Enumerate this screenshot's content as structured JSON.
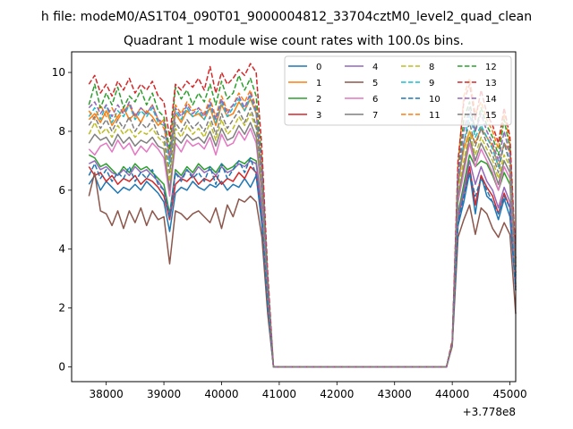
{
  "chart_data": {
    "type": "line",
    "suptitle": "h file: modeM0/AS1T04_090T01_9000004812_33704cztM0_level2_quad_clean",
    "title": "Quadrant 1 module wise count rates with 100.0s bins.",
    "xlabel": "",
    "ylabel": "",
    "x_offset_label": "+3.778e8",
    "xlim": [
      37400,
      45100
    ],
    "ylim": [
      -0.5,
      10.7
    ],
    "xticks": [
      38000,
      39000,
      40000,
      41000,
      42000,
      43000,
      44000,
      45000
    ],
    "yticks": [
      0,
      2,
      4,
      6,
      8,
      10
    ],
    "x_start": 37700,
    "x_step": 100,
    "legend": {
      "placement": "top-right",
      "ncol": 4
    },
    "grid": false,
    "series": [
      {
        "name": "0",
        "color": "#1f77b4",
        "style": "solid",
        "values": [
          6.2,
          6.5,
          6.0,
          6.3,
          6.1,
          5.9,
          6.1,
          6.0,
          6.2,
          6.0,
          6.3,
          6.1,
          5.9,
          5.6,
          4.6,
          5.9,
          6.1,
          6.0,
          6.3,
          6.1,
          6.0,
          6.2,
          6.1,
          6.3,
          6.0,
          6.2,
          6.1,
          6.4,
          6.1,
          6.5,
          4.8,
          2.0,
          0,
          0,
          0,
          0,
          0,
          0,
          0,
          0,
          0,
          0,
          0,
          0,
          0,
          0,
          0,
          0,
          0,
          0,
          0,
          0,
          0,
          0,
          0,
          0,
          0,
          0,
          0,
          0,
          0,
          0,
          0,
          0.8,
          4.8,
          5.6,
          6.6,
          5.2,
          6.5,
          5.8,
          5.6,
          5.0,
          5.7,
          5.1,
          2.6
        ]
      },
      {
        "name": "1",
        "color": "#ff7f0e",
        "style": "solid",
        "values": [
          8.4,
          8.6,
          8.3,
          8.7,
          8.2,
          8.5,
          8.8,
          8.4,
          8.6,
          8.3,
          8.7,
          8.5,
          8.2,
          8.4,
          7.0,
          8.6,
          8.3,
          8.7,
          8.5,
          8.6,
          8.4,
          8.8,
          8.2,
          8.9,
          8.5,
          8.6,
          9.0,
          8.7,
          9.1,
          8.6,
          6.6,
          2.8,
          0,
          0,
          0,
          0,
          0,
          0,
          0,
          0,
          0,
          0,
          0,
          0,
          0,
          0,
          0,
          0,
          0,
          0,
          0,
          0,
          0,
          0,
          0,
          0,
          0,
          0,
          0,
          0,
          0,
          0,
          0,
          0.8,
          6.2,
          7.4,
          8.0,
          7.6,
          8.1,
          7.8,
          7.5,
          6.8,
          7.6,
          7.3,
          3.4
        ]
      },
      {
        "name": "2",
        "color": "#2ca02c",
        "style": "solid",
        "values": [
          7.2,
          7.1,
          6.8,
          6.9,
          6.7,
          6.5,
          6.8,
          6.6,
          6.9,
          6.7,
          6.8,
          6.6,
          6.4,
          6.2,
          5.2,
          6.7,
          6.5,
          6.8,
          6.6,
          6.9,
          6.7,
          6.8,
          6.6,
          6.9,
          6.7,
          6.8,
          7.0,
          6.9,
          7.1,
          7.0,
          5.4,
          2.2,
          0,
          0,
          0,
          0,
          0,
          0,
          0,
          0,
          0,
          0,
          0,
          0,
          0,
          0,
          0,
          0,
          0,
          0,
          0,
          0,
          0,
          0,
          0,
          0,
          0,
          0,
          0,
          0,
          0,
          0,
          0,
          0.8,
          5.2,
          6.2,
          7.2,
          6.8,
          7.0,
          6.9,
          6.5,
          6.0,
          6.6,
          6.2,
          2.8
        ]
      },
      {
        "name": "3",
        "color": "#d62728",
        "style": "solid",
        "values": [
          6.8,
          6.5,
          6.6,
          6.3,
          6.5,
          6.2,
          6.4,
          6.3,
          6.5,
          6.2,
          6.4,
          6.3,
          6.1,
          5.8,
          5.0,
          6.2,
          6.4,
          6.3,
          6.5,
          6.2,
          6.4,
          6.3,
          6.5,
          6.2,
          6.4,
          6.3,
          6.6,
          6.4,
          6.8,
          6.6,
          5.1,
          2.1,
          0,
          0,
          0,
          0,
          0,
          0,
          0,
          0,
          0,
          0,
          0,
          0,
          0,
          0,
          0,
          0,
          0,
          0,
          0,
          0,
          0,
          0,
          0,
          0,
          0,
          0,
          0,
          0,
          0,
          0,
          0,
          0.8,
          5.0,
          5.9,
          6.8,
          5.5,
          6.5,
          6.1,
          5.8,
          5.2,
          5.9,
          5.4,
          2.7
        ]
      },
      {
        "name": "4",
        "color": "#9467bd",
        "style": "solid",
        "values": [
          6.9,
          7.0,
          6.7,
          6.8,
          6.6,
          6.5,
          6.7,
          6.5,
          6.8,
          6.6,
          6.7,
          6.5,
          6.3,
          6.0,
          5.1,
          6.6,
          6.4,
          6.7,
          6.5,
          6.8,
          6.6,
          6.7,
          6.5,
          6.8,
          6.6,
          6.7,
          6.9,
          6.8,
          7.0,
          6.9,
          5.3,
          2.1,
          0,
          0,
          0,
          0,
          0,
          0,
          0,
          0,
          0,
          0,
          0,
          0,
          0,
          0,
          0,
          0,
          0,
          0,
          0,
          0,
          0,
          0,
          0,
          0,
          0,
          0,
          0,
          0,
          0,
          0,
          0,
          0.8,
          5.1,
          6.0,
          7.0,
          6.2,
          6.8,
          6.3,
          6.0,
          5.4,
          6.1,
          5.6,
          2.7
        ]
      },
      {
        "name": "5",
        "color": "#8c564b",
        "style": "solid",
        "values": [
          5.8,
          6.6,
          5.3,
          5.2,
          4.8,
          5.3,
          4.7,
          5.3,
          4.9,
          5.4,
          4.8,
          5.3,
          5.0,
          5.1,
          3.5,
          5.3,
          5.2,
          5.0,
          5.2,
          5.3,
          5.1,
          4.9,
          5.4,
          4.7,
          5.5,
          5.1,
          5.7,
          5.6,
          5.8,
          5.6,
          4.4,
          1.8,
          0,
          0,
          0,
          0,
          0,
          0,
          0,
          0,
          0,
          0,
          0,
          0,
          0,
          0,
          0,
          0,
          0,
          0,
          0,
          0,
          0,
          0,
          0,
          0,
          0,
          0,
          0,
          0,
          0,
          0,
          0,
          0.7,
          4.4,
          5.0,
          5.5,
          4.5,
          5.4,
          5.2,
          4.7,
          4.4,
          4.9,
          4.5,
          1.8
        ]
      },
      {
        "name": "6",
        "color": "#e377c2",
        "style": "solid",
        "values": [
          7.4,
          7.2,
          7.5,
          7.6,
          7.3,
          7.7,
          7.4,
          7.6,
          7.2,
          7.5,
          7.3,
          7.6,
          7.4,
          7.1,
          5.8,
          7.6,
          7.3,
          7.7,
          7.5,
          7.6,
          7.4,
          7.8,
          7.2,
          7.9,
          7.5,
          7.6,
          8.0,
          7.7,
          8.1,
          7.6,
          5.8,
          2.4,
          0,
          0,
          0,
          0,
          0,
          0,
          0,
          0,
          0,
          0,
          0,
          0,
          0,
          0,
          0,
          0,
          0,
          0,
          0,
          0,
          0,
          0,
          0,
          0,
          0,
          0,
          0,
          0,
          0,
          0,
          0,
          0.8,
          5.6,
          6.6,
          7.6,
          6.8,
          7.4,
          7.0,
          6.6,
          6.0,
          6.8,
          6.4,
          3.0
        ]
      },
      {
        "name": "7",
        "color": "#7f7f7f",
        "style": "solid",
        "values": [
          7.6,
          7.9,
          7.7,
          7.8,
          7.5,
          7.9,
          7.6,
          7.8,
          7.5,
          7.7,
          7.6,
          7.8,
          7.5,
          7.4,
          6.0,
          7.8,
          7.6,
          7.9,
          7.7,
          7.8,
          7.6,
          8.0,
          7.5,
          8.1,
          7.7,
          7.8,
          8.2,
          7.9,
          8.3,
          7.8,
          6.0,
          2.5,
          0,
          0,
          0,
          0,
          0,
          0,
          0,
          0,
          0,
          0,
          0,
          0,
          0,
          0,
          0,
          0,
          0,
          0,
          0,
          0,
          0,
          0,
          0,
          0,
          0,
          0,
          0,
          0,
          0,
          0,
          0,
          0.8,
          5.8,
          6.8,
          7.8,
          7.0,
          7.6,
          7.2,
          6.8,
          6.2,
          7.0,
          6.6,
          3.1
        ]
      },
      {
        "name": "8",
        "color": "#bcbd22",
        "style": "dashed",
        "values": [
          7.9,
          8.3,
          7.9,
          8.1,
          7.8,
          8.2,
          7.9,
          8.1,
          7.8,
          8.0,
          7.9,
          8.1,
          7.8,
          7.6,
          6.3,
          8.1,
          7.8,
          8.2,
          7.9,
          8.1,
          7.8,
          8.3,
          7.7,
          8.4,
          7.9,
          8.1,
          8.5,
          8.2,
          8.6,
          8.1,
          6.2,
          2.6,
          0,
          0,
          0,
          0,
          0,
          0,
          0,
          0,
          0,
          0,
          0,
          0,
          0,
          0,
          0,
          0,
          0,
          0,
          0,
          0,
          0,
          0,
          0,
          0,
          0,
          0,
          0,
          0,
          0,
          0,
          0,
          0.8,
          6.0,
          7.0,
          8.0,
          7.2,
          7.8,
          7.4,
          7.0,
          6.4,
          7.2,
          6.8,
          3.2
        ]
      },
      {
        "name": "9",
        "color": "#17becf",
        "style": "dashed",
        "values": [
          8.5,
          8.8,
          8.4,
          8.9,
          8.3,
          8.7,
          8.5,
          8.9,
          8.4,
          8.7,
          8.5,
          8.8,
          8.3,
          8.2,
          6.9,
          8.7,
          8.4,
          8.8,
          8.5,
          8.7,
          8.4,
          8.9,
          8.3,
          9.0,
          8.5,
          8.8,
          9.1,
          8.7,
          9.2,
          8.6,
          6.6,
          2.8,
          0,
          0,
          0,
          0,
          0,
          0,
          0,
          0,
          0,
          0,
          0,
          0,
          0,
          0,
          0,
          0,
          0,
          0,
          0,
          0,
          0,
          0,
          0,
          0,
          0,
          0,
          0,
          0,
          0,
          0,
          0,
          0.8,
          6.4,
          7.6,
          8.6,
          7.8,
          8.2,
          7.8,
          7.4,
          6.8,
          7.6,
          7.0,
          3.4
        ]
      },
      {
        "name": "10",
        "color": "#1f77b4",
        "style": "dashed",
        "values": [
          6.5,
          6.9,
          6.4,
          6.7,
          6.3,
          6.6,
          6.4,
          6.8,
          6.3,
          6.6,
          6.4,
          6.7,
          6.2,
          6.0,
          5.1,
          6.6,
          6.3,
          6.7,
          6.4,
          6.6,
          6.3,
          6.8,
          6.2,
          6.9,
          6.4,
          6.7,
          7.0,
          6.6,
          7.1,
          6.5,
          5.0,
          2.1,
          0,
          0,
          0,
          0,
          0,
          0,
          0,
          0,
          0,
          0,
          0,
          0,
          0,
          0,
          0,
          0,
          0,
          0,
          0,
          0,
          0,
          0,
          0,
          0,
          0,
          0,
          0,
          0,
          0,
          0,
          0,
          0.8,
          4.9,
          5.8,
          6.6,
          5.8,
          6.4,
          6.0,
          5.6,
          5.2,
          5.8,
          5.4,
          2.6
        ]
      },
      {
        "name": "11",
        "color": "#ff7f0e",
        "style": "dashed",
        "values": [
          8.7,
          8.4,
          8.9,
          8.5,
          8.8,
          8.4,
          8.7,
          8.9,
          8.5,
          8.8,
          8.6,
          8.9,
          8.4,
          8.1,
          7.2,
          8.9,
          8.6,
          9.0,
          8.7,
          8.8,
          8.6,
          9.1,
          8.5,
          9.2,
          8.7,
          8.9,
          9.3,
          9.0,
          9.4,
          8.8,
          6.8,
          2.9,
          0,
          0,
          0,
          0,
          0,
          0,
          0,
          0,
          0,
          0,
          0,
          0,
          0,
          0,
          0,
          0,
          0,
          0,
          0,
          0,
          0,
          0,
          0,
          0,
          0,
          0,
          0,
          0,
          0,
          0,
          0,
          0.8,
          6.8,
          9.2,
          9.8,
          8.6,
          9.0,
          8.4,
          8.0,
          7.4,
          8.6,
          7.6,
          3.6
        ]
      },
      {
        "name": "12",
        "color": "#2ca02c",
        "style": "dashed",
        "values": [
          8.9,
          9.6,
          8.8,
          9.3,
          8.9,
          9.5,
          8.8,
          9.2,
          9.0,
          9.4,
          8.9,
          9.3,
          8.7,
          8.5,
          7.4,
          9.5,
          9.1,
          9.4,
          8.9,
          9.3,
          9.0,
          9.6,
          8.9,
          9.7,
          9.1,
          9.3,
          9.9,
          9.4,
          9.8,
          9.2,
          7.0,
          3.0,
          0,
          0,
          0,
          0,
          0,
          0,
          0,
          0,
          0,
          0,
          0,
          0,
          0,
          0,
          0,
          0,
          0,
          0,
          0,
          0,
          0,
          0,
          0,
          0,
          0,
          0,
          0,
          0,
          0,
          0,
          0,
          0.8,
          6.6,
          8.4,
          9.0,
          8.0,
          8.8,
          8.2,
          7.8,
          7.2,
          8.4,
          7.4,
          3.5
        ]
      },
      {
        "name": "13",
        "color": "#d62728",
        "style": "dashed",
        "values": [
          9.6,
          9.9,
          9.3,
          9.6,
          9.2,
          9.7,
          9.4,
          9.8,
          9.3,
          9.6,
          9.4,
          9.7,
          9.2,
          9.0,
          7.8,
          9.6,
          9.4,
          9.7,
          9.5,
          9.8,
          9.4,
          10.2,
          9.3,
          10.0,
          9.6,
          9.8,
          10.1,
          9.9,
          10.3,
          10.0,
          7.4,
          3.2,
          0,
          0,
          0,
          0,
          0,
          0,
          0,
          0,
          0,
          0,
          0,
          0,
          0,
          0,
          0,
          0,
          0,
          0,
          0,
          0,
          0,
          0,
          0,
          0,
          0,
          0,
          0,
          0,
          0,
          0,
          0,
          0.9,
          7.0,
          9.0,
          9.6,
          8.4,
          9.4,
          8.6,
          8.2,
          7.6,
          8.8,
          7.8,
          3.7
        ]
      },
      {
        "name": "14",
        "color": "#9467bd",
        "style": "dashed",
        "values": [
          8.8,
          9.0,
          8.6,
          8.9,
          8.5,
          8.9,
          8.6,
          9.0,
          8.5,
          8.8,
          8.6,
          8.9,
          8.4,
          8.3,
          7.1,
          8.8,
          8.5,
          8.9,
          8.6,
          8.8,
          8.5,
          9.0,
          8.4,
          9.1,
          8.6,
          8.9,
          9.2,
          8.8,
          9.3,
          8.7,
          6.7,
          2.8,
          0,
          0,
          0,
          0,
          0,
          0,
          0,
          0,
          0,
          0,
          0,
          0,
          0,
          0,
          0,
          0,
          0,
          0,
          0,
          0,
          0,
          0,
          0,
          0,
          0,
          0,
          0,
          0,
          0,
          0,
          0,
          0.8,
          6.5,
          8.0,
          8.8,
          8.0,
          8.6,
          8.0,
          7.6,
          7.0,
          8.0,
          7.2,
          3.4
        ]
      },
      {
        "name": "15",
        "color": "#7f7f7f",
        "style": "dashed",
        "values": [
          8.2,
          8.5,
          8.1,
          8.4,
          8.0,
          8.4,
          8.1,
          8.5,
          8.0,
          8.3,
          8.1,
          8.4,
          7.9,
          7.8,
          6.6,
          8.3,
          8.0,
          8.4,
          8.1,
          8.3,
          8.0,
          8.5,
          7.9,
          8.6,
          8.1,
          8.4,
          8.7,
          8.3,
          8.8,
          8.2,
          6.4,
          2.7,
          0,
          0,
          0,
          0,
          0,
          0,
          0,
          0,
          0,
          0,
          0,
          0,
          0,
          0,
          0,
          0,
          0,
          0,
          0,
          0,
          0,
          0,
          0,
          0,
          0,
          0,
          0,
          0,
          0,
          0,
          0,
          0.8,
          6.2,
          7.6,
          8.3,
          7.5,
          8.1,
          7.6,
          7.2,
          6.6,
          7.6,
          6.9,
          3.2
        ]
      }
    ]
  }
}
